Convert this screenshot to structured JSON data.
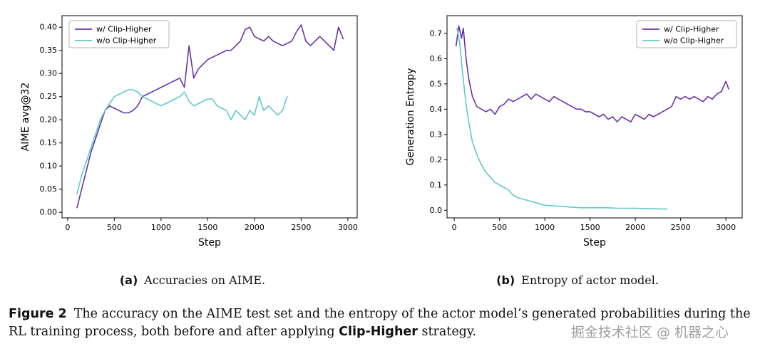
{
  "figure": {
    "sub_captions": [
      {
        "label": "(a)",
        "text": "Accuracies on AIME."
      },
      {
        "label": "(b)",
        "text": "Entropy of actor model."
      }
    ],
    "caption_label": "Figure 2",
    "caption_text_before": "The accuracy on the AIME test set and the entropy of the actor model’s generated probabilities during the RL training process, both before and after applying ",
    "caption_bold": "Clip-Higher",
    "caption_text_after": " strategy."
  },
  "watermark": "掘金技术社区 @ 机器之心",
  "colors": {
    "with_clip_higher": "#6633aa",
    "without_clip_higher": "#5fc9cb"
  },
  "chart_data": [
    {
      "type": "line",
      "title": "",
      "xlabel": "Step",
      "ylabel": "AIME avg@32",
      "xlim": [
        -60,
        3100
      ],
      "ylim": [
        -0.012,
        0.425
      ],
      "xticks": [
        "0",
        "500",
        "1000",
        "1500",
        "2000",
        "2500",
        "3000"
      ],
      "yticks": [
        "0.00",
        "0.05",
        "0.10",
        "0.15",
        "0.20",
        "0.25",
        "0.30",
        "0.35",
        "0.40"
      ],
      "legend_position": "top-left",
      "grid": false,
      "series": [
        {
          "name": "w/ Clip-Higher",
          "color": "#6633aa",
          "x": [
            100,
            150,
            200,
            250,
            300,
            350,
            400,
            450,
            500,
            550,
            600,
            650,
            700,
            750,
            800,
            850,
            900,
            950,
            1000,
            1050,
            1100,
            1150,
            1200,
            1250,
            1300,
            1350,
            1400,
            1450,
            1500,
            1550,
            1600,
            1650,
            1700,
            1750,
            1800,
            1850,
            1900,
            1950,
            2000,
            2050,
            2100,
            2150,
            2200,
            2250,
            2300,
            2350,
            2400,
            2450,
            2500,
            2550,
            2600,
            2650,
            2700,
            2750,
            2800,
            2850,
            2900,
            2950
          ],
          "y": [
            0.01,
            0.05,
            0.09,
            0.13,
            0.16,
            0.19,
            0.22,
            0.23,
            0.225,
            0.22,
            0.215,
            0.215,
            0.22,
            0.23,
            0.25,
            0.255,
            0.26,
            0.265,
            0.27,
            0.275,
            0.28,
            0.285,
            0.29,
            0.27,
            0.36,
            0.29,
            0.31,
            0.32,
            0.33,
            0.335,
            0.34,
            0.345,
            0.35,
            0.35,
            0.36,
            0.37,
            0.395,
            0.4,
            0.38,
            0.375,
            0.37,
            0.38,
            0.37,
            0.365,
            0.36,
            0.365,
            0.37,
            0.39,
            0.405,
            0.37,
            0.36,
            0.37,
            0.38,
            0.37,
            0.36,
            0.35,
            0.4,
            0.375
          ]
        },
        {
          "name": "w/o Clip-Higher",
          "color": "#5fc9cb",
          "x": [
            100,
            150,
            200,
            250,
            300,
            350,
            400,
            450,
            500,
            550,
            600,
            650,
            700,
            750,
            800,
            850,
            900,
            950,
            1000,
            1050,
            1100,
            1150,
            1200,
            1250,
            1300,
            1350,
            1400,
            1450,
            1500,
            1550,
            1600,
            1650,
            1700,
            1750,
            1800,
            1850,
            1900,
            1950,
            2000,
            2050,
            2100,
            2150,
            2200,
            2250,
            2300,
            2350
          ],
          "y": [
            0.04,
            0.08,
            0.11,
            0.14,
            0.17,
            0.2,
            0.22,
            0.235,
            0.25,
            0.255,
            0.26,
            0.265,
            0.265,
            0.26,
            0.25,
            0.245,
            0.24,
            0.235,
            0.23,
            0.235,
            0.24,
            0.245,
            0.25,
            0.26,
            0.24,
            0.23,
            0.235,
            0.24,
            0.245,
            0.245,
            0.23,
            0.225,
            0.22,
            0.2,
            0.22,
            0.21,
            0.2,
            0.22,
            0.21,
            0.25,
            0.22,
            0.23,
            0.22,
            0.21,
            0.22,
            0.25
          ]
        }
      ]
    },
    {
      "type": "line",
      "title": "",
      "xlabel": "Step",
      "ylabel": "Generation Entropy",
      "xlim": [
        -80,
        3180
      ],
      "ylim": [
        -0.03,
        0.77
      ],
      "xticks": [
        "0",
        "500",
        "1000",
        "1500",
        "2000",
        "2500",
        "3000"
      ],
      "yticks": [
        "0.0",
        "0.1",
        "0.2",
        "0.3",
        "0.4",
        "0.5",
        "0.6",
        "0.7"
      ],
      "legend_position": "top-right",
      "grid": false,
      "series": [
        {
          "name": "w/ Clip-Higher",
          "color": "#6633aa",
          "x": [
            20,
            50,
            80,
            100,
            130,
            160,
            200,
            250,
            300,
            350,
            400,
            450,
            500,
            550,
            600,
            650,
            700,
            750,
            800,
            850,
            900,
            950,
            1000,
            1050,
            1100,
            1150,
            1200,
            1250,
            1300,
            1350,
            1400,
            1450,
            1500,
            1550,
            1600,
            1650,
            1700,
            1750,
            1800,
            1850,
            1900,
            1950,
            2000,
            2050,
            2100,
            2150,
            2200,
            2250,
            2300,
            2350,
            2400,
            2450,
            2500,
            2550,
            2600,
            2650,
            2700,
            2750,
            2800,
            2850,
            2900,
            2950,
            3000,
            3030
          ],
          "y": [
            0.65,
            0.73,
            0.68,
            0.72,
            0.6,
            0.52,
            0.45,
            0.41,
            0.4,
            0.39,
            0.4,
            0.38,
            0.41,
            0.42,
            0.44,
            0.43,
            0.44,
            0.45,
            0.46,
            0.44,
            0.46,
            0.45,
            0.44,
            0.43,
            0.45,
            0.44,
            0.43,
            0.42,
            0.41,
            0.4,
            0.4,
            0.39,
            0.39,
            0.38,
            0.37,
            0.38,
            0.36,
            0.37,
            0.35,
            0.37,
            0.36,
            0.35,
            0.38,
            0.37,
            0.36,
            0.38,
            0.37,
            0.38,
            0.39,
            0.4,
            0.41,
            0.45,
            0.44,
            0.45,
            0.44,
            0.45,
            0.44,
            0.43,
            0.45,
            0.44,
            0.46,
            0.47,
            0.51,
            0.48
          ]
        },
        {
          "name": "w/o Clip-Higher",
          "color": "#5fc9cb",
          "x": [
            30,
            60,
            90,
            120,
            150,
            200,
            250,
            300,
            350,
            400,
            450,
            500,
            550,
            600,
            650,
            700,
            750,
            800,
            900,
            1000,
            1100,
            1200,
            1300,
            1400,
            1500,
            1600,
            1700,
            1800,
            1900,
            2000,
            2100,
            2200,
            2300,
            2350
          ],
          "y": [
            0.72,
            0.66,
            0.55,
            0.45,
            0.37,
            0.27,
            0.22,
            0.18,
            0.15,
            0.13,
            0.11,
            0.1,
            0.09,
            0.08,
            0.06,
            0.05,
            0.045,
            0.04,
            0.03,
            0.02,
            0.018,
            0.015,
            0.012,
            0.01,
            0.01,
            0.01,
            0.01,
            0.008,
            0.008,
            0.008,
            0.007,
            0.006,
            0.005,
            0.005
          ]
        }
      ]
    }
  ]
}
